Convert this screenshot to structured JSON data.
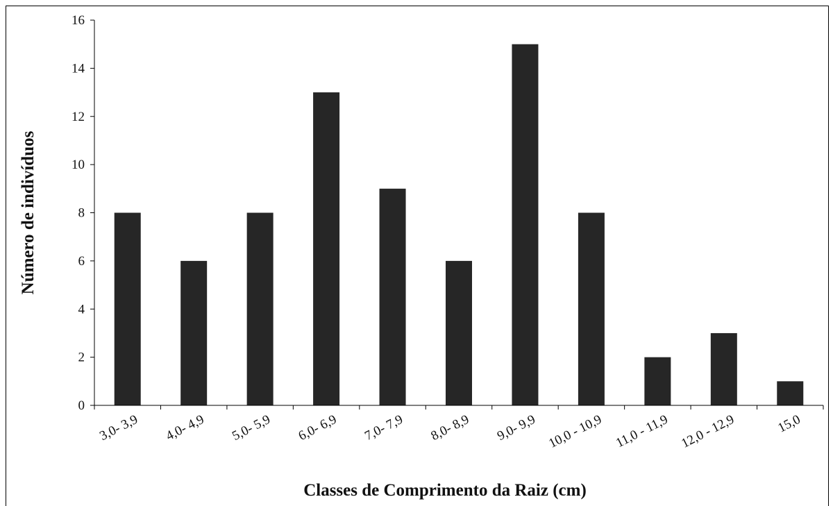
{
  "chart_data": {
    "type": "bar",
    "categories": [
      "3,0- 3,9",
      "4,0- 4,9",
      "5,0- 5,9",
      "6,0- 6,9",
      "7,0- 7,9",
      "8,0- 8,9",
      "9,0- 9,9",
      "10,0 - 10,9",
      "11,0 - 11,9",
      "12,0 - 12,9",
      "15,0"
    ],
    "values": [
      8,
      6,
      8,
      13,
      9,
      6,
      15,
      8,
      2,
      3,
      1
    ],
    "xlabel": "Classes de Comprimento da Raiz (cm)",
    "ylabel": "Número de indivíduos",
    "ylim": [
      0,
      16
    ],
    "yticks": [
      0,
      2,
      4,
      6,
      8,
      10,
      12,
      14,
      16
    ],
    "grid": false,
    "legend": "none",
    "bar_color": "#262626"
  }
}
